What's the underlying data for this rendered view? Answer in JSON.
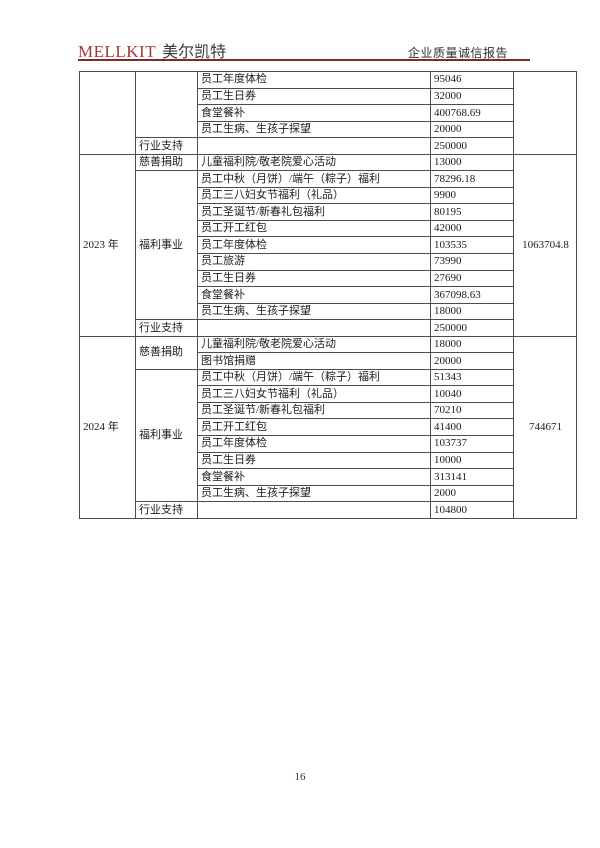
{
  "header": {
    "brand": "MELLKIT",
    "brand_cn": "美尔凯特",
    "doc_title": "企业质量诚信报告",
    "brand_color": "#a43a31",
    "rule_color": "#7b2d28"
  },
  "footer": {
    "page_number": "16"
  },
  "table": {
    "sections": [
      {
        "year": "",
        "total": "",
        "groups": [
          {
            "category": "",
            "rows": [
              {
                "item": "员工年度体检",
                "amount": "95046"
              },
              {
                "item": "员工生日券",
                "amount": "32000"
              },
              {
                "item": "食堂餐补",
                "amount": "400768.69"
              },
              {
                "item": "员工生病、生孩子探望",
                "amount": "20000"
              }
            ]
          },
          {
            "category": "行业支持",
            "rows": [
              {
                "item": "",
                "amount": "250000"
              }
            ]
          }
        ]
      },
      {
        "year": "2023 年",
        "total": "1063704.8",
        "groups": [
          {
            "category": "慈善捐助",
            "rows": [
              {
                "item": "儿童福利院/敬老院爱心活动",
                "amount": "13000"
              }
            ]
          },
          {
            "category": "福利事业",
            "rows": [
              {
                "item": "员工中秋（月饼）/端午（粽子）福利",
                "amount": "78296.18"
              },
              {
                "item": "员工三八妇女节福利（礼品）",
                "amount": "9900"
              },
              {
                "item": "员工圣诞节/新春礼包福利",
                "amount": "80195"
              },
              {
                "item": "员工开工红包",
                "amount": "42000"
              },
              {
                "item": "员工年度体检",
                "amount": "103535"
              },
              {
                "item": "员工旅游",
                "amount": "73990"
              },
              {
                "item": "员工生日券",
                "amount": "27690"
              },
              {
                "item": "食堂餐补",
                "amount": "367098.63"
              },
              {
                "item": "员工生病、生孩子探望",
                "amount": "18000"
              }
            ]
          },
          {
            "category": "行业支持",
            "rows": [
              {
                "item": "",
                "amount": "250000"
              }
            ]
          }
        ]
      },
      {
        "year": "2024 年",
        "total": "744671",
        "groups": [
          {
            "category": "慈善捐助",
            "rows": [
              {
                "item": "儿童福利院/敬老院爱心活动",
                "amount": "18000"
              },
              {
                "item": "图书馆捐赠",
                "amount": "20000"
              }
            ]
          },
          {
            "category": "福利事业",
            "rows": [
              {
                "item": "员工中秋（月饼）/端午（粽子）福利",
                "amount": "51343"
              },
              {
                "item": "员工三八妇女节福利（礼品）",
                "amount": "10040"
              },
              {
                "item": "员工圣诞节/新春礼包福利",
                "amount": "70210"
              },
              {
                "item": "员工开工红包",
                "amount": "41400"
              },
              {
                "item": "员工年度体检",
                "amount": "103737"
              },
              {
                "item": "员工生日券",
                "amount": "10000"
              },
              {
                "item": "食堂餐补",
                "amount": "313141"
              },
              {
                "item": "员工生病、生孩子探望",
                "amount": "2000"
              }
            ]
          },
          {
            "category": "行业支持",
            "rows": [
              {
                "item": "",
                "amount": "104800"
              }
            ]
          }
        ]
      }
    ]
  }
}
